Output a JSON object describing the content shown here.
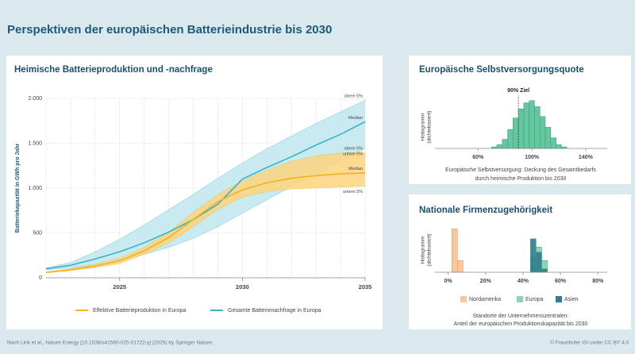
{
  "header": {
    "title": "Perspektiven der europäischen Batterieindustrie bis 2030"
  },
  "footer": {
    "source": "Nach Link et al., Nature Energy [10.1038/s41560-025-01722-y] (2025) by Springer Nature.",
    "credit": "© Fraunhofer ISI under CC BY 4.0"
  },
  "chart_data": [
    {
      "type": "line",
      "title": "Heimische Batterieproduktion und -nachfrage",
      "ylabel": "Batteriekapazität in GWh pro Jahr",
      "x": [
        2022,
        2023,
        2024,
        2025,
        2026,
        2027,
        2028,
        2029,
        2030,
        2031,
        2032,
        2033,
        2034,
        2035
      ],
      "xlim": [
        2022,
        2035
      ],
      "xticks": [
        2025,
        2030,
        2035
      ],
      "ylim": [
        0,
        2000
      ],
      "yticks": [
        0,
        500,
        {
          "value": 1000,
          "label": "1.000"
        },
        {
          "value": 1500,
          "label": "1.500"
        },
        {
          "value": 2000,
          "label": "2.000"
        }
      ],
      "grid": true,
      "series": [
        {
          "name": "Gesamte Batterienachfrage in Europa",
          "color": "#35b5c6",
          "band_color": "#bfe6ee",
          "values": [
            100,
            140,
            210,
            290,
            390,
            510,
            650,
            820,
            1100,
            1230,
            1350,
            1480,
            1600,
            1740
          ],
          "upper": [
            110,
            170,
            290,
            430,
            590,
            760,
            930,
            1110,
            1280,
            1440,
            1580,
            1720,
            1850,
            1980
          ],
          "lower": [
            90,
            110,
            150,
            200,
            260,
            340,
            440,
            570,
            720,
            870,
            1020,
            1160,
            1300,
            1440
          ],
          "band_labels": [
            "obere 5%",
            "Median",
            "untere 5%"
          ]
        },
        {
          "name": "Effektive Batterieproduktion in Europa",
          "color": "#f2b21c",
          "band_color": "#fbd57e",
          "values": [
            60,
            90,
            130,
            190,
            300,
            450,
            650,
            850,
            980,
            1060,
            1110,
            1140,
            1160,
            1170
          ],
          "upper": [
            65,
            100,
            150,
            220,
            340,
            510,
            730,
            930,
            1080,
            1200,
            1300,
            1360,
            1390,
            1400
          ],
          "lower": [
            55,
            80,
            115,
            160,
            260,
            390,
            570,
            760,
            900,
            960,
            990,
            1000,
            1010,
            1020
          ],
          "band_labels": [
            "obere 5%",
            "Median",
            "untere 5%"
          ]
        }
      ]
    },
    {
      "type": "histogram",
      "title": "Europäische Selbstversorgungsquote",
      "ylabel": [
        "Histogramm",
        "(dichtebasiert)"
      ],
      "xlabel": [
        "Europäische Selbstversorgung: Deckung des Gesamtbedarfs",
        "durch heimische Produktion bis 2030"
      ],
      "xlim": [
        28,
        156
      ],
      "xticks": [
        {
          "value": 60,
          "label": "60%"
        },
        {
          "value": 100,
          "label": "100%"
        },
        {
          "value": 140,
          "label": "140%"
        }
      ],
      "ylim": [
        0,
        70
      ],
      "annotation": {
        "value": 90,
        "label": "90% Ziel"
      },
      "series": [
        {
          "name": null,
          "color": "#63c7a0",
          "bins": [
            70,
            74,
            78,
            82,
            86,
            90,
            94,
            98,
            102,
            106,
            110,
            114,
            118,
            122,
            126
          ],
          "values": [
            2,
            5,
            12,
            25,
            40,
            52,
            60,
            63,
            55,
            42,
            28,
            14,
            5,
            2
          ]
        }
      ]
    },
    {
      "type": "histogram",
      "title": "Nationale Firmenzugehörigkeit",
      "ylabel": [
        "Histogramm",
        "(dichtebasiert)"
      ],
      "xlabel": [
        "Standorte der Unternehmenszentralen:",
        "Anteil der europäischen Produktionskapazität bis 2030"
      ],
      "xlim": [
        -7,
        85
      ],
      "xticks": [
        {
          "value": 0,
          "label": "0%"
        },
        {
          "value": 20,
          "label": "20%"
        },
        {
          "value": 40,
          "label": "40%"
        },
        {
          "value": 60,
          "label": "60%"
        },
        {
          "value": 80,
          "label": "80%"
        }
      ],
      "ylim": [
        0,
        55
      ],
      "legend": true,
      "series": [
        {
          "name": "Nordamerika",
          "color": "#f9c79c",
          "bins": [
            2,
            5,
            8
          ],
          "values": [
            52,
            14
          ]
        },
        {
          "name": "Europa",
          "color": "#8fd3b5",
          "bins": [
            44,
            47,
            50,
            53
          ],
          "values": [
            18,
            30,
            14
          ]
        },
        {
          "name": "Asien",
          "color": "#2e7d8c",
          "bins": [
            44,
            47,
            50,
            53
          ],
          "values": [
            40,
            24,
            4
          ]
        }
      ]
    }
  ]
}
